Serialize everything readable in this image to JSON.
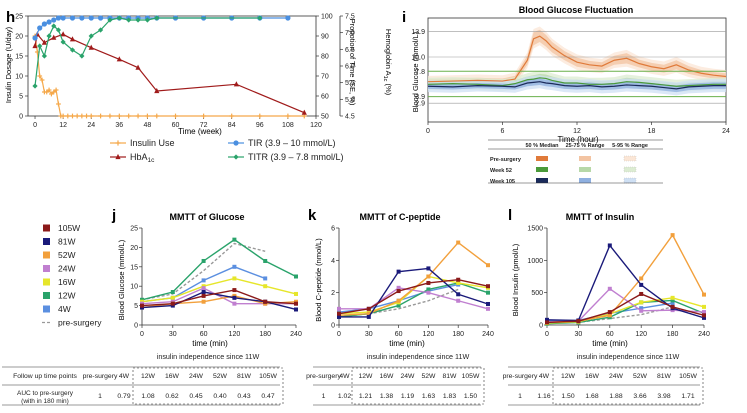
{
  "panel_letters": {
    "h": "h",
    "i": "i",
    "j": "j",
    "k": "k",
    "l": "l"
  },
  "colors": {
    "insulin_use": "#f5a84a",
    "hba1c": "#a01b1b",
    "tir": "#4a8fe0",
    "titr": "#2aa36b",
    "w105": "#8b1a1a",
    "w81": "#1a1a7a",
    "w52": "#f2a03c",
    "w24": "#c07fd0",
    "w16": "#e6e62a",
    "w12": "#2aa36b",
    "w4": "#5b8fe0",
    "pre": "#999999",
    "median_pre": "#e07a3a",
    "median_52": "#4a9a3a",
    "median_105": "#1a2a5a",
    "iqr_pre": "#f3c4a2",
    "iqr_52": "#b7d8a8",
    "iqr_105": "#8fb0e0",
    "range_pre": "#fbe6d6",
    "range_52": "#dcecd2",
    "range_105": "#cfe0f4",
    "green_line": "#6ab04c"
  },
  "chart_data": [
    {
      "id": "h",
      "type": "line",
      "xlabel": "Time (week)",
      "ylabel": "Insulin Dosage (U/day)",
      "y2label": "Propotion of Time (SE, %)",
      "y3label": "Hemoglobin A1c (%)",
      "xlim": [
        -3,
        120
      ],
      "xticks": [
        0,
        12,
        24,
        36,
        48,
        60,
        72,
        84,
        96,
        108,
        120
      ],
      "ylim": [
        0,
        25
      ],
      "yticks": [
        0,
        5,
        10,
        15,
        20,
        25
      ],
      "y2lim": [
        50,
        100
      ],
      "y2ticks": [
        50,
        60,
        70,
        80,
        90,
        100
      ],
      "y3lim": [
        4.5,
        7.5
      ],
      "y3ticks": [
        "4.5",
        "5.0",
        "5.5",
        "6.0",
        "6.5",
        "7.0",
        "7.5"
      ],
      "series": [
        {
          "name": "Insulin Use",
          "axis": "left",
          "marker": "plus",
          "color": "#f5a84a",
          "x": [
            0,
            1,
            2,
            3,
            4,
            5,
            6,
            7,
            8,
            9,
            10,
            11,
            12,
            14,
            16,
            18,
            20,
            22,
            24,
            28,
            32,
            36,
            40,
            44,
            48,
            52,
            60,
            72,
            84,
            96,
            108,
            115
          ],
          "y": [
            20,
            16,
            10,
            9,
            6,
            6,
            6.5,
            5.5,
            6,
            6.5,
            3,
            0,
            0,
            0,
            0,
            0,
            0,
            0,
            0,
            0,
            0,
            0,
            0,
            0,
            0,
            0,
            0,
            0,
            0,
            0,
            0,
            0
          ]
        },
        {
          "name": "HbA1c",
          "axis": "y3",
          "marker": "triangle",
          "color": "#a01b1b",
          "x": [
            0,
            1,
            4,
            8,
            12,
            16,
            24,
            36,
            44,
            52,
            86,
            115
          ],
          "y": [
            6.6,
            6.95,
            6.7,
            6.85,
            6.95,
            6.8,
            6.55,
            6.2,
            5.95,
            5.25,
            5.45,
            4.6
          ]
        },
        {
          "name": "TIR (3.9 – 10 mmol/L)",
          "axis": "right",
          "marker": "circle",
          "color": "#4a8fe0",
          "x": [
            0,
            2,
            4,
            6,
            8,
            10,
            12,
            16,
            20,
            24,
            28,
            32,
            36,
            40,
            44,
            48,
            52,
            60,
            72,
            84,
            96,
            108
          ],
          "y": [
            89,
            94,
            96,
            97,
            98,
            99,
            99,
            99,
            99,
            99,
            99,
            99,
            99,
            99,
            99,
            99,
            99,
            99,
            99,
            99,
            99,
            99
          ]
        },
        {
          "name": "TITR (3.9 – 7.8 mmol/L)",
          "axis": "right",
          "marker": "diamond",
          "color": "#2aa36b",
          "x": [
            0,
            2,
            4,
            6,
            8,
            10,
            12,
            16,
            20,
            24,
            28,
            32,
            36,
            40,
            44,
            48,
            52,
            96
          ],
          "y": [
            65,
            85,
            80,
            90,
            95,
            93,
            87,
            83,
            80,
            90,
            93,
            98,
            99,
            98,
            98,
            98,
            99,
            99
          ]
        }
      ]
    },
    {
      "id": "i",
      "type": "area",
      "title": "Blood Glucose Fluctuation",
      "xlabel": "Time (hour)",
      "ylabel": "Blood Glucose (mmol/L)",
      "xlim": [
        0,
        24
      ],
      "xticks": [
        0,
        6,
        12,
        18,
        24
      ],
      "ylim": [
        0,
        16
      ],
      "yticks": [
        "2.9",
        "3.9",
        "7.8",
        "10.0",
        "13.9"
      ],
      "ytick_values": [
        2.9,
        3.9,
        7.8,
        10.0,
        13.9
      ],
      "x": [
        0,
        2,
        4,
        6,
        7,
        8,
        8.5,
        9,
        9.5,
        10,
        11,
        12,
        13,
        14,
        15,
        16,
        17,
        18,
        19,
        20,
        21,
        22,
        23,
        24
      ],
      "series": [
        {
          "name": "Pre-surgery",
          "median": [
            6.2,
            6.3,
            6.4,
            6.3,
            6.6,
            9.5,
            12.8,
            13.2,
            12.5,
            11.5,
            10.2,
            9.2,
            8.8,
            8.6,
            9.5,
            9.8,
            9.0,
            8.5,
            8.2,
            8.8,
            8.0,
            7.5,
            7.2,
            7.0
          ],
          "q1": [
            5.8,
            5.9,
            6.0,
            5.9,
            6.1,
            8.8,
            11.8,
            12.3,
            11.6,
            10.7,
            9.5,
            8.5,
            8.2,
            8.0,
            8.8,
            9.0,
            8.4,
            7.9,
            7.6,
            8.1,
            7.4,
            7.0,
            6.7,
            6.5
          ],
          "q3": [
            6.6,
            6.7,
            6.8,
            6.7,
            7.1,
            10.2,
            13.8,
            14.2,
            13.4,
            12.3,
            10.9,
            9.9,
            9.4,
            9.2,
            10.2,
            10.6,
            9.6,
            9.1,
            8.8,
            9.5,
            8.6,
            8.0,
            7.7,
            7.5
          ]
        },
        {
          "name": "Week 52",
          "median": [
            5.8,
            5.9,
            5.8,
            5.6,
            5.9,
            6.5,
            6.6,
            6.8,
            6.7,
            6.4,
            6.0,
            6.0,
            5.8,
            5.8,
            5.9,
            6.2,
            6.1,
            5.9,
            5.7,
            5.5,
            5.6,
            5.7,
            5.8,
            5.8
          ],
          "q1": [
            5.4,
            5.5,
            5.4,
            5.2,
            5.5,
            6.0,
            6.1,
            6.3,
            6.2,
            5.9,
            5.6,
            5.6,
            5.4,
            5.4,
            5.5,
            5.8,
            5.7,
            5.5,
            5.3,
            5.1,
            5.2,
            5.3,
            5.4,
            5.4
          ],
          "q3": [
            6.3,
            6.4,
            6.3,
            6.1,
            6.4,
            7.0,
            7.2,
            7.4,
            7.3,
            7.0,
            6.5,
            6.5,
            6.3,
            6.3,
            6.4,
            6.8,
            6.6,
            6.4,
            6.2,
            6.0,
            6.1,
            6.2,
            6.3,
            6.3
          ]
        },
        {
          "name": "Week 105",
          "median": [
            5.5,
            5.4,
            5.6,
            5.5,
            5.4,
            6.0,
            6.1,
            6.2,
            6.0,
            5.9,
            5.6,
            5.5,
            5.6,
            5.4,
            5.5,
            5.7,
            5.6,
            5.5,
            5.3,
            5.1,
            5.4,
            5.5,
            5.6,
            5.6
          ],
          "q1": [
            5.1,
            5.0,
            5.2,
            5.1,
            5.0,
            5.5,
            5.6,
            5.7,
            5.5,
            5.4,
            5.1,
            5.0,
            5.1,
            4.9,
            5.0,
            5.2,
            5.1,
            5.0,
            4.8,
            4.6,
            4.9,
            5.0,
            5.1,
            5.1
          ],
          "q3": [
            5.9,
            5.8,
            6.0,
            5.9,
            5.8,
            6.5,
            6.6,
            6.7,
            6.5,
            6.4,
            6.1,
            6.0,
            6.1,
            5.9,
            6.0,
            6.2,
            6.1,
            6.0,
            5.8,
            5.6,
            5.9,
            6.0,
            6.1,
            6.1
          ]
        }
      ],
      "legend_table": {
        "headers": [
          "50 % Median",
          "25-75 % Range",
          "5-95 % Range"
        ],
        "rows": [
          "Pre-surgery",
          "Week 52",
          "Week 105"
        ]
      }
    },
    {
      "id": "j",
      "type": "line",
      "title": "MMTT of Glucose",
      "xlabel": "time (min)",
      "ylabel": "Blood Glucose (mmol/L)",
      "x": [
        0,
        30,
        60,
        120,
        180,
        240
      ],
      "xticks": [
        "0",
        "30",
        "60",
        "120",
        "180",
        "240"
      ],
      "ylim": [
        0,
        25
      ],
      "yticks": [
        0,
        5,
        10,
        15,
        20,
        25
      ],
      "series": [
        {
          "name": "105W",
          "values": [
            5.0,
            5.5,
            7.5,
            9.0,
            6.0,
            5.5
          ]
        },
        {
          "name": "81W",
          "values": [
            4.5,
            5.0,
            8.5,
            7.0,
            6.0,
            4.0
          ]
        },
        {
          "name": "52W",
          "values": [
            4.5,
            5.5,
            6.0,
            7.5,
            5.5,
            6.0
          ]
        },
        {
          "name": "24W",
          "values": [
            5.5,
            6.0,
            9.5,
            5.5,
            5.5,
            5.5
          ]
        },
        {
          "name": "16W",
          "values": [
            6.0,
            7.0,
            10.0,
            12.0,
            10.0,
            8.0
          ]
        },
        {
          "name": "12W",
          "values": [
            6.5,
            8.5,
            16.5,
            22.0,
            16.5,
            12.5
          ]
        },
        {
          "name": "4W",
          "values": [
            6.0,
            7.0,
            11.5,
            15.0,
            12.0,
            null
          ]
        },
        {
          "name": "pre-surgery",
          "values": [
            6.5,
            8.0,
            14.0,
            21.0,
            19.0,
            null
          ]
        }
      ]
    },
    {
      "id": "k",
      "type": "line",
      "title": "MMTT of C-peptide",
      "xlabel": "time (min)",
      "ylabel": "Blood C-peptide (nmol/L)",
      "x": [
        0,
        30,
        60,
        120,
        180,
        240
      ],
      "xticks": [
        "0",
        "30",
        "60",
        "120",
        "180",
        "240"
      ],
      "ylim": [
        0,
        6
      ],
      "yticks": [
        0,
        2,
        4,
        6
      ],
      "series": [
        {
          "name": "105W",
          "values": [
            0.7,
            1.0,
            2.1,
            2.6,
            2.8,
            2.4
          ]
        },
        {
          "name": "81W",
          "values": [
            0.5,
            0.5,
            3.3,
            3.5,
            1.9,
            1.3
          ]
        },
        {
          "name": "52W",
          "values": [
            0.6,
            0.7,
            1.5,
            3.0,
            5.1,
            3.7
          ]
        },
        {
          "name": "24W",
          "values": [
            1.0,
            1.0,
            2.3,
            2.0,
            1.5,
            1.0
          ]
        },
        {
          "name": "16W",
          "values": [
            0.7,
            0.8,
            1.4,
            3.0,
            2.6,
            2.3
          ]
        },
        {
          "name": "12W",
          "values": [
            0.5,
            0.7,
            1.2,
            2.2,
            2.6,
            2.0
          ]
        },
        {
          "name": "4W",
          "values": [
            0.8,
            1.0,
            1.5,
            2.1,
            2.5,
            null
          ]
        },
        {
          "name": "pre-surgery",
          "values": [
            0.5,
            0.7,
            1.0,
            1.5,
            2.2,
            null
          ]
        }
      ]
    },
    {
      "id": "l",
      "type": "line",
      "title": "MMTT of Insulin",
      "xlabel": "time (min)",
      "ylabel": "Blood Insulin (pmol/L)",
      "x": [
        0,
        30,
        60,
        120,
        180,
        240
      ],
      "xticks": [
        "0",
        "30",
        "60",
        "120",
        "180",
        "240"
      ],
      "ylim": [
        0,
        1500
      ],
      "yticks": [
        0,
        500,
        1000,
        1500
      ],
      "series": [
        {
          "name": "105W",
          "values": [
            40,
            60,
            200,
            480,
            280,
            150
          ]
        },
        {
          "name": "81W",
          "values": [
            80,
            70,
            1230,
            620,
            260,
            110
          ]
        },
        {
          "name": "52W",
          "values": [
            40,
            60,
            150,
            720,
            1390,
            470
          ]
        },
        {
          "name": "24W",
          "values": [
            50,
            60,
            560,
            220,
            230,
            200
          ]
        },
        {
          "name": "16W",
          "values": [
            30,
            50,
            170,
            350,
            420,
            280
          ]
        },
        {
          "name": "12W",
          "values": [
            20,
            40,
            120,
            350,
            380,
            180
          ]
        },
        {
          "name": "4W",
          "values": [
            60,
            70,
            180,
            260,
            340,
            null
          ]
        },
        {
          "name": "pre-surgery",
          "values": [
            30,
            40,
            100,
            160,
            280,
            null
          ]
        }
      ]
    }
  ],
  "legend_h": [
    {
      "label": "Insulin Use",
      "key": "insulin_use",
      "marker": "plus"
    },
    {
      "label": "TIR (3.9 – 10 mmol/L)",
      "key": "tir",
      "marker": "circle"
    },
    {
      "label": "HbA1c",
      "key": "hba1c",
      "marker": "triangle"
    },
    {
      "label": "TITR (3.9 – 7.8 mmol/L)",
      "key": "titr",
      "marker": "diamond"
    }
  ],
  "legend_mmtt": [
    "105W",
    "81W",
    "52W",
    "24W",
    "16W",
    "12W",
    "4W",
    "pre-surgery"
  ],
  "table_j": {
    "row1": [
      "Follow up time points",
      "pre-surgery",
      "4W",
      "12W",
      "16W",
      "24W",
      "52W",
      "81W",
      "105W"
    ],
    "row2": [
      "AUC to pre-surgery (with in 180 min)",
      "1",
      "0.79",
      "1.08",
      "0.62",
      "0.45",
      "0.40",
      "0.43",
      "0.47"
    ],
    "note": "insulin independence since 11W"
  },
  "table_k": {
    "row1": [
      "pre-surgery",
      "4W",
      "12W",
      "16W",
      "24W",
      "52W",
      "81W",
      "105W"
    ],
    "row2": [
      "1",
      "1.02",
      "1.21",
      "1.38",
      "1.19",
      "1.63",
      "1.83",
      "1.50"
    ],
    "note": "insulin independence since 11W"
  },
  "table_l": {
    "row1": [
      "pre-surgery",
      "4W",
      "12W",
      "16W",
      "24W",
      "52W",
      "81W",
      "105W"
    ],
    "row2": [
      "1",
      "1.16",
      "1.50",
      "1.68",
      "1.88",
      "3.66",
      "3.98",
      "1.71"
    ],
    "note": "insulin independence since 11W"
  }
}
